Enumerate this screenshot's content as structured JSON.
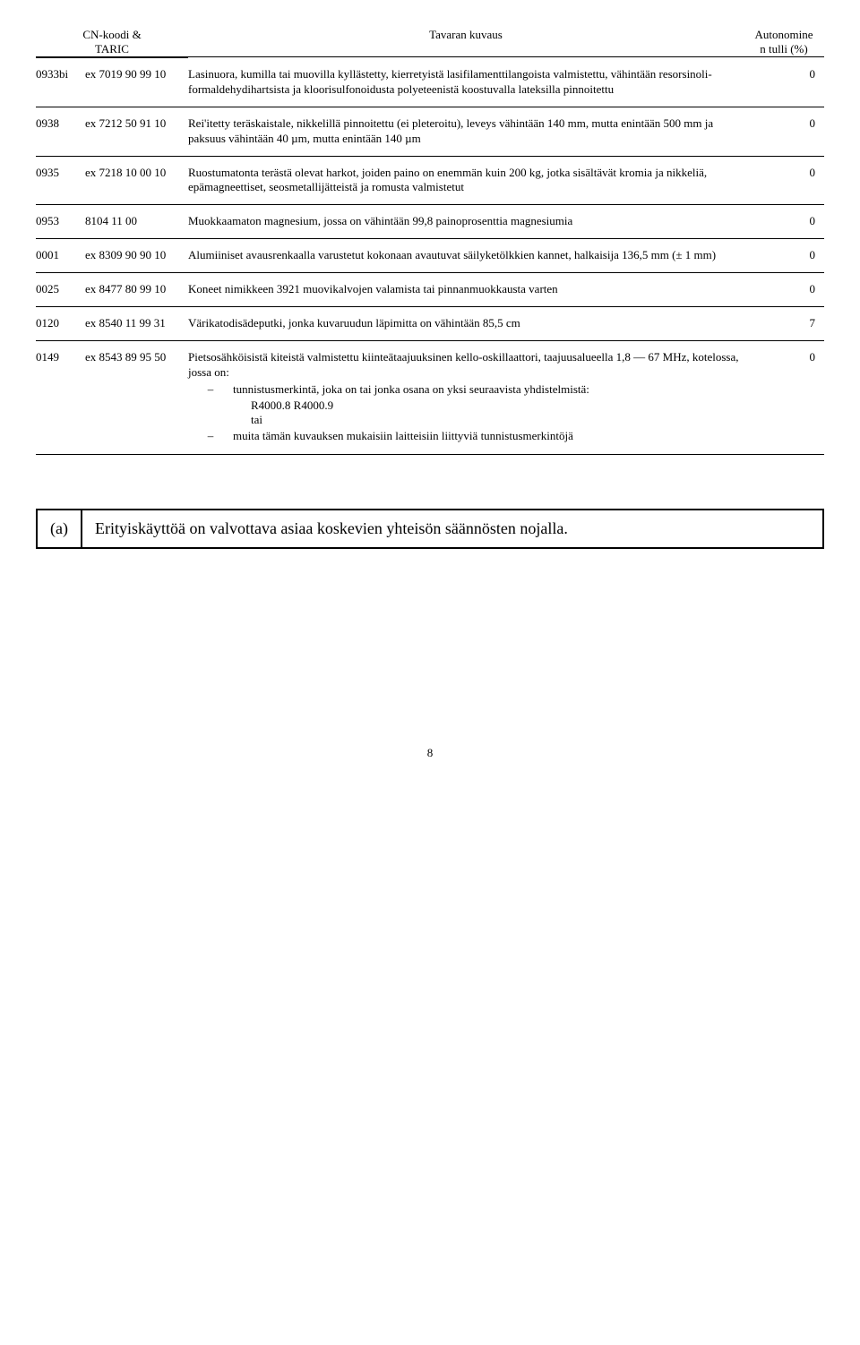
{
  "header": {
    "code_col1": "CN-koodi &",
    "code_col2": "TARIC",
    "desc": "Tavaran kuvaus",
    "duty1": "Autonomine",
    "duty2": "n tulli (%)"
  },
  "rows": [
    {
      "id": "0933bi",
      "code": "ex 7019 90 99 10",
      "desc": "Lasinuora, kumilla tai muovilla kyllästetty, kierretyistä lasifilamenttilangoista valmistettu, vähintään resorsinoli-formaldehydihartsista ja kloorisulfonoidusta polyeteenistä koostuvalla lateksilla pinnoitettu",
      "duty": "0"
    },
    {
      "id": "0938",
      "code": "ex 7212 50 91 10",
      "desc": "Rei'itetty teräskaistale, nikkelillä pinnoitettu (ei pleteroitu), leveys vähintään 140 mm, mutta enintään 500 mm ja paksuus vähintään 40 µm, mutta enintään 140 µm",
      "duty": "0"
    },
    {
      "id": "0935",
      "code": "ex 7218 10 00 10",
      "desc": "Ruostumatonta terästä olevat harkot, joiden paino on enemmän kuin 200 kg, jotka sisältävät kromia ja nikkeliä, epämagneettiset, seosmetallijätteistä ja romusta valmistetut",
      "duty": "0"
    },
    {
      "id": "0953",
      "code": "8104 11 00",
      "desc": "Muokkaamaton magnesium, jossa on vähintään 99,8 painoprosenttia magnesiumia",
      "duty": "0"
    },
    {
      "id": "0001",
      "code": "ex 8309 90 90 10",
      "desc": "Alumiiniset avausrenkaalla varustetut kokonaan avautuvat säilyketölkkien kannet, halkaisija 136,5 mm (± 1 mm)",
      "duty": "0"
    },
    {
      "id": "0025",
      "code": "ex 8477 80 99 10",
      "desc": "Koneet nimikkeen 3921 muovikalvojen valamista tai pinnanmuokkausta varten",
      "duty": "0"
    },
    {
      "id": "0120",
      "code": "ex 8540 11 99 31",
      "desc": "Värikatodisädeputki, jonka kuvaruudun läpimitta on vähintään 85,5 cm",
      "duty": "7"
    },
    {
      "id": "0149",
      "code": "ex 8543 89 95 50",
      "desc": "Pietsosähköisistä kiteistä valmistettu kiinteätaajuuksinen kello-oskillaattori, taajuusalueella 1,8 — 67 MHz, kotelossa, jossa on:",
      "duty": "0",
      "dashes": [
        "tunnistusmerkintä, joka on tai jonka osana on yksi seuraavista yhdistelmistä:",
        "muita tämän kuvauksen mukaisiin laitteisiin liittyviä tunnistusmerkintöjä"
      ],
      "sub1": "R4000.8 R4000.9",
      "sub2": "tai"
    }
  ],
  "footnote": {
    "key": "(a)",
    "text": "Erityiskäyttöä on valvottava asiaa koskevien yhteisön säännösten nojalla."
  },
  "page": "8"
}
